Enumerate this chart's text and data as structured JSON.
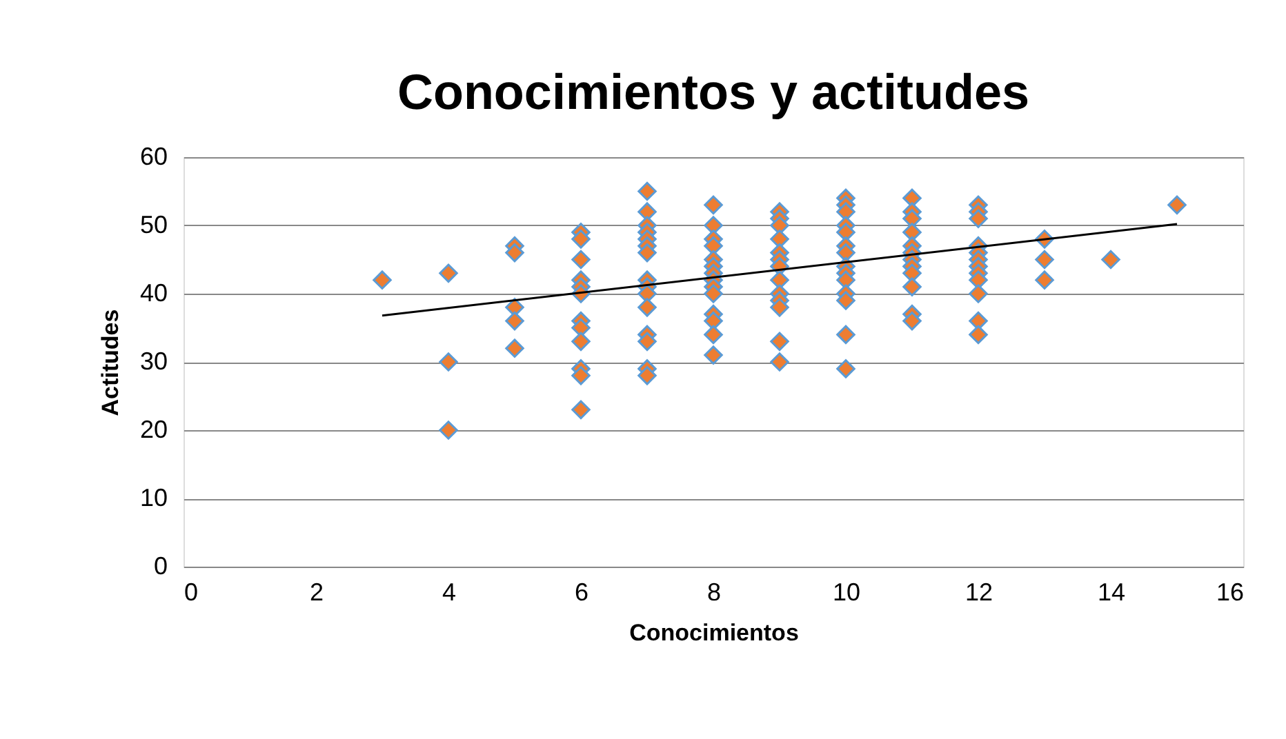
{
  "chart_data": {
    "type": "scatter",
    "title": "Conocimientos y actitudes",
    "xlabel": "Conocimientos",
    "ylabel": "Actitudes",
    "xlim": [
      0,
      16
    ],
    "xticks": [
      0,
      2,
      4,
      6,
      8,
      10,
      12,
      14,
      16
    ],
    "ylim": [
      0,
      60
    ],
    "yticks": [
      0,
      10,
      20,
      30,
      40,
      50,
      60
    ],
    "grid": "y",
    "series": [
      {
        "marker": "diamond",
        "color": "#ed7d31",
        "x": [
          3,
          4,
          4,
          4,
          5,
          5,
          5,
          5,
          5,
          6,
          6,
          6,
          6,
          6,
          6,
          6,
          6,
          6,
          6,
          6,
          6,
          7,
          7,
          7,
          7,
          7,
          7,
          7,
          7,
          7,
          7,
          7,
          7,
          7,
          7,
          7,
          8,
          8,
          8,
          8,
          8,
          8,
          8,
          8,
          8,
          8,
          8,
          8,
          8,
          8,
          9,
          9,
          9,
          9,
          9,
          9,
          9,
          9,
          9,
          9,
          9,
          9,
          9,
          10,
          10,
          10,
          10,
          10,
          10,
          10,
          10,
          10,
          10,
          10,
          10,
          10,
          10,
          11,
          11,
          11,
          11,
          11,
          11,
          11,
          11,
          11,
          11,
          11,
          11,
          12,
          12,
          12,
          12,
          12,
          12,
          12,
          12,
          12,
          12,
          12,
          12,
          13,
          13,
          13,
          14,
          15
        ],
        "values": [
          42,
          43,
          30,
          20,
          47,
          46,
          38,
          36,
          32,
          49,
          48,
          45,
          42,
          41,
          40,
          36,
          35,
          33,
          29,
          28,
          23,
          55,
          52,
          50,
          49,
          48,
          47,
          46,
          42,
          41,
          40,
          38,
          34,
          33,
          29,
          28,
          53,
          50,
          48,
          47,
          45,
          44,
          43,
          42,
          41,
          40,
          37,
          36,
          34,
          31,
          52,
          51,
          50,
          48,
          46,
          45,
          44,
          42,
          40,
          39,
          38,
          33,
          30,
          54,
          53,
          52,
          50,
          49,
          47,
          46,
          44,
          43,
          42,
          40,
          39,
          34,
          29,
          54,
          52,
          51,
          49,
          47,
          46,
          45,
          44,
          43,
          41,
          37,
          36,
          53,
          52,
          51,
          47,
          46,
          45,
          44,
          43,
          42,
          40,
          36,
          34,
          48,
          45,
          42,
          45,
          53
        ]
      },
      {
        "type": "line",
        "color": "#000000",
        "x": [
          3,
          15
        ],
        "values": [
          36.8,
          50.2
        ]
      }
    ]
  }
}
